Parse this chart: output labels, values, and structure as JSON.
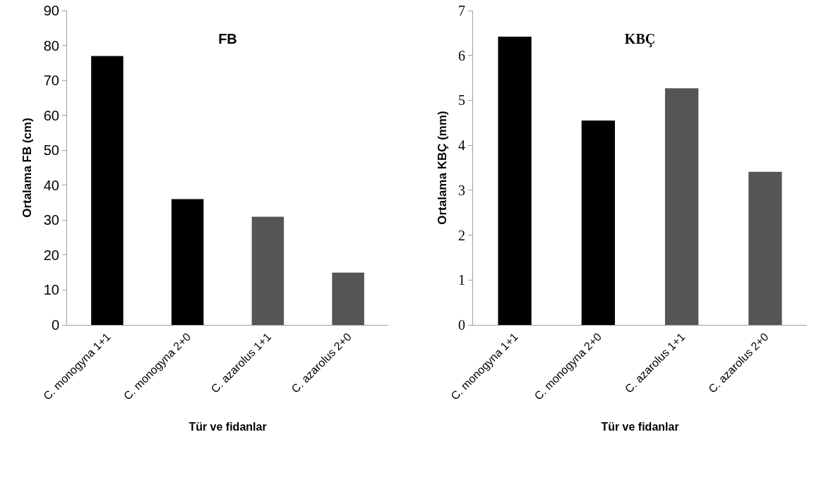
{
  "chart_data": [
    {
      "type": "bar",
      "title": "FB",
      "xlabel": "Tür ve fidanlar",
      "ylabel": "Ortalama FB (cm)",
      "categories": [
        "C. monogyna 1+1",
        "C. monogyna 2+0",
        "C. azarolus 1+1",
        "C. azarolus 2+0"
      ],
      "values": [
        77,
        36,
        31,
        15
      ],
      "colors": [
        "#000000",
        "#000000",
        "#555555",
        "#555555"
      ],
      "ylim": [
        0,
        90
      ],
      "yticks": [
        0,
        10,
        20,
        30,
        40,
        50,
        60,
        70,
        80,
        90
      ],
      "grid": false
    },
    {
      "type": "bar",
      "title": "KBÇ",
      "xlabel": "Tür ve fidanlar",
      "ylabel": "Ortalama KBÇ (mm)",
      "categories": [
        "C. monogyna 1+1",
        "C. monogyna 2+0",
        "C. azarolus 1+1",
        "C. azarolus 2+0"
      ],
      "values": [
        6.42,
        4.55,
        5.27,
        3.41
      ],
      "colors": [
        "#000000",
        "#000000",
        "#555555",
        "#555555"
      ],
      "ylim": [
        0,
        7
      ],
      "yticks": [
        0,
        1,
        2,
        3,
        4,
        5,
        6,
        7
      ],
      "grid": false
    }
  ]
}
